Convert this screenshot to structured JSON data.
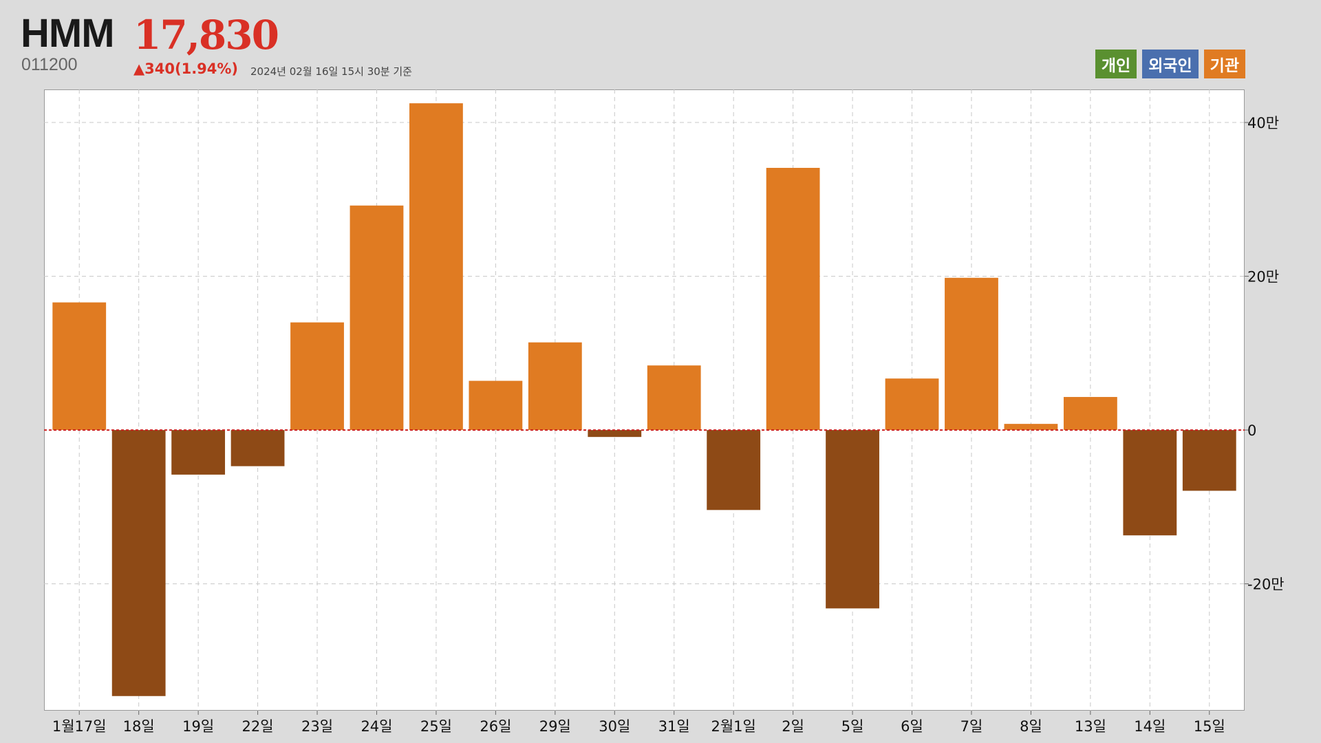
{
  "header": {
    "name": "HMM",
    "price": "17,830",
    "code": "011200",
    "change": "▲340(1.94%)",
    "timestamp": "2024년 02월 16일 15시 30분 기준"
  },
  "legend": [
    {
      "label": "개인",
      "color": "#5a9030"
    },
    {
      "label": "외국인",
      "color": "#4a6fae"
    },
    {
      "label": "기관",
      "color": "#e07b22"
    }
  ],
  "colors": {
    "positive": "#e07b22",
    "negative": "#8e4a16",
    "zero_line": "#cc2222",
    "grid": "#c8c8c8"
  },
  "chart_data": {
    "type": "bar",
    "series": [
      {
        "name": "기관",
        "values": [
          166000,
          -346000,
          -58000,
          -47000,
          140000,
          292000,
          425000,
          64000,
          114000,
          -9000,
          84000,
          -104000,
          341000,
          -232000,
          67000,
          198000,
          8000,
          43000,
          -137000,
          -79000
        ]
      }
    ],
    "categories": [
      "1월17일",
      "18일",
      "19일",
      "22일",
      "23일",
      "24일",
      "25일",
      "26일",
      "29일",
      "30일",
      "31일",
      "2월1일",
      "2일",
      "5일",
      "6일",
      "7일",
      "8일",
      "13일",
      "14일",
      "15일"
    ],
    "y_ticks": [
      {
        "value": 400000,
        "label": "40만"
      },
      {
        "value": 200000,
        "label": "20만"
      },
      {
        "value": 0,
        "label": "0"
      },
      {
        "value": -200000,
        "label": "-20만"
      }
    ],
    "ylim": [
      -365000,
      443000
    ],
    "grid": true,
    "legend_position": "top-right"
  }
}
